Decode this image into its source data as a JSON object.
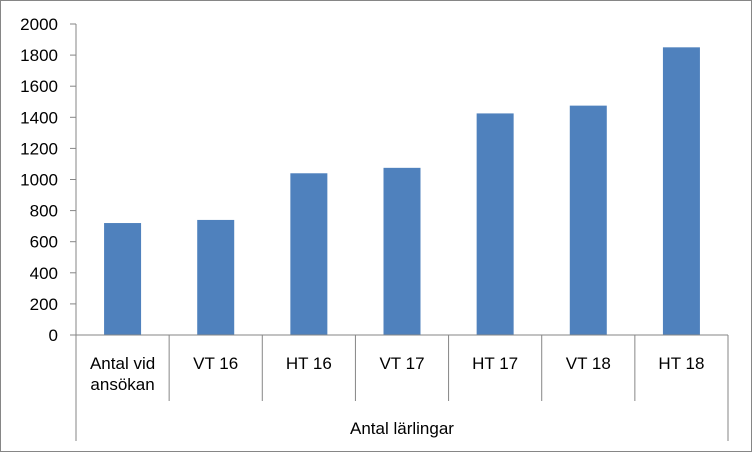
{
  "chart_data": {
    "type": "bar",
    "categories": [
      [
        "Antal vid",
        "ansökan"
      ],
      [
        "VT 16"
      ],
      [
        "HT 16"
      ],
      [
        "VT 17"
      ],
      [
        "HT 17"
      ],
      [
        "VT 18"
      ],
      [
        "HT 18"
      ]
    ],
    "values": [
      720,
      740,
      1040,
      1075,
      1425,
      1475,
      1850
    ],
    "group_label": "Antal lärlingar",
    "ylim": [
      0,
      2000
    ],
    "yticks": [
      "0",
      "200",
      "400",
      "600",
      "800",
      "1000",
      "1200",
      "1400",
      "1600",
      "1800",
      "2000"
    ],
    "grid": false,
    "legend": "none",
    "bar_color": "#4f81bd",
    "axis_color": "#868686"
  }
}
